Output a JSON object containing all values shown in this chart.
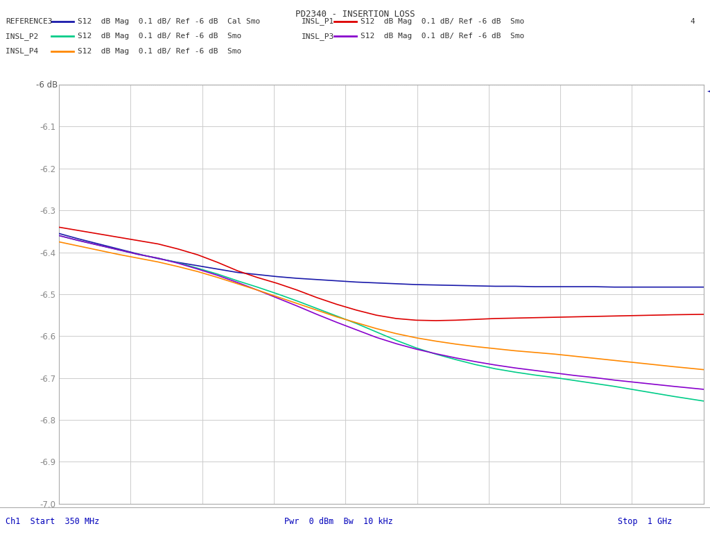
{
  "title": "PD2340 - INSERTION LOSS",
  "xstart": 350,
  "xstop": 1000,
  "ymin": -7.0,
  "ymax": -6.0,
  "ytop_label": "-6 dB",
  "grid_color": "#cccccc",
  "bg_color": "#ffffff",
  "bottom_left": "Ch1  Start  350 MHz",
  "bottom_center": "Pwr  0 dBm  Bw  10 kHz",
  "bottom_right": "Stop  1 GHz",
  "extra_label": "4",
  "traces": {
    "REFERENCE3": {
      "color": "#1a1aaa",
      "x": [
        350,
        370,
        390,
        410,
        430,
        450,
        470,
        490,
        510,
        530,
        550,
        570,
        590,
        610,
        630,
        650,
        670,
        690,
        710,
        730,
        750,
        770,
        790,
        810,
        830,
        850,
        870,
        890,
        910,
        930,
        950,
        970,
        1000
      ],
      "y": [
        -6.355,
        -6.368,
        -6.38,
        -6.392,
        -6.404,
        -6.415,
        -6.424,
        -6.432,
        -6.44,
        -6.448,
        -6.453,
        -6.458,
        -6.462,
        -6.465,
        -6.468,
        -6.471,
        -6.473,
        -6.475,
        -6.477,
        -6.478,
        -6.479,
        -6.48,
        -6.481,
        -6.481,
        -6.482,
        -6.482,
        -6.482,
        -6.482,
        -6.483,
        -6.483,
        -6.483,
        -6.483,
        -6.483
      ]
    },
    "INSL_P1": {
      "color": "#dd0000",
      "x": [
        350,
        370,
        390,
        410,
        430,
        450,
        470,
        490,
        510,
        530,
        550,
        570,
        590,
        610,
        630,
        650,
        670,
        690,
        710,
        730,
        750,
        770,
        790,
        810,
        830,
        850,
        870,
        890,
        910,
        930,
        950,
        970,
        1000
      ],
      "y": [
        -6.34,
        -6.348,
        -6.356,
        -6.364,
        -6.372,
        -6.38,
        -6.392,
        -6.406,
        -6.424,
        -6.444,
        -6.46,
        -6.474,
        -6.49,
        -6.508,
        -6.524,
        -6.538,
        -6.55,
        -6.558,
        -6.562,
        -6.563,
        -6.562,
        -6.56,
        -6.558,
        -6.557,
        -6.556,
        -6.555,
        -6.554,
        -6.553,
        -6.552,
        -6.551,
        -6.55,
        -6.549,
        -6.548
      ]
    },
    "INSL_P2": {
      "color": "#00cc88",
      "x": [
        350,
        370,
        390,
        410,
        430,
        450,
        470,
        490,
        510,
        530,
        550,
        570,
        590,
        610,
        630,
        650,
        670,
        690,
        710,
        730,
        750,
        770,
        790,
        810,
        830,
        850,
        870,
        890,
        910,
        930,
        950,
        970,
        1000
      ],
      "y": [
        -6.36,
        -6.372,
        -6.383,
        -6.394,
        -6.405,
        -6.414,
        -6.425,
        -6.438,
        -6.452,
        -6.468,
        -6.483,
        -6.499,
        -6.516,
        -6.534,
        -6.552,
        -6.57,
        -6.59,
        -6.61,
        -6.628,
        -6.643,
        -6.656,
        -6.668,
        -6.678,
        -6.686,
        -6.693,
        -6.699,
        -6.706,
        -6.713,
        -6.72,
        -6.728,
        -6.736,
        -6.744,
        -6.755
      ]
    },
    "INSL_P3": {
      "color": "#8800cc",
      "x": [
        350,
        370,
        390,
        410,
        430,
        450,
        470,
        490,
        510,
        530,
        550,
        570,
        590,
        610,
        630,
        650,
        670,
        690,
        710,
        730,
        750,
        770,
        790,
        810,
        830,
        850,
        870,
        890,
        910,
        930,
        950,
        970,
        1000
      ],
      "y": [
        -6.36,
        -6.372,
        -6.383,
        -6.394,
        -6.405,
        -6.414,
        -6.426,
        -6.44,
        -6.455,
        -6.472,
        -6.49,
        -6.509,
        -6.528,
        -6.548,
        -6.567,
        -6.585,
        -6.603,
        -6.618,
        -6.631,
        -6.642,
        -6.652,
        -6.661,
        -6.669,
        -6.676,
        -6.682,
        -6.688,
        -6.694,
        -6.699,
        -6.705,
        -6.71,
        -6.715,
        -6.72,
        -6.727
      ]
    },
    "INSL_P4": {
      "color": "#ff8800",
      "x": [
        350,
        370,
        390,
        410,
        430,
        450,
        470,
        490,
        510,
        530,
        550,
        570,
        590,
        610,
        630,
        650,
        670,
        690,
        710,
        730,
        750,
        770,
        790,
        810,
        830,
        850,
        870,
        890,
        910,
        930,
        950,
        970,
        1000
      ],
      "y": [
        -6.375,
        -6.385,
        -6.395,
        -6.405,
        -6.414,
        -6.423,
        -6.434,
        -6.446,
        -6.46,
        -6.475,
        -6.49,
        -6.506,
        -6.522,
        -6.538,
        -6.554,
        -6.568,
        -6.582,
        -6.594,
        -6.604,
        -6.612,
        -6.619,
        -6.625,
        -6.63,
        -6.635,
        -6.639,
        -6.643,
        -6.648,
        -6.653,
        -6.658,
        -6.663,
        -6.668,
        -6.673,
        -6.68
      ]
    }
  },
  "legend_rows": [
    [
      {
        "label": "REFERENCE3",
        "color": "#1a1aaa",
        "desc": "S12  dB Mag  0.1 dB/ Ref -6 dB  Cal Smo"
      },
      {
        "label": "INSL_P1",
        "color": "#dd0000",
        "desc": "S12  dB Mag  0.1 dB/ Ref -6 dB  Smo"
      },
      {
        "label": "4",
        "color": null,
        "desc": null
      }
    ],
    [
      {
        "label": "INSL_P2",
        "color": "#00cc88",
        "desc": "S12  dB Mag  0.1 dB/ Ref -6 dB  Smo"
      },
      {
        "label": "INSL_P3",
        "color": "#8800cc",
        "desc": "S12  dB Mag  0.1 dB/ Ref -6 dB  Smo"
      },
      {
        "label": null,
        "color": null,
        "desc": null
      }
    ],
    [
      {
        "label": "INSL_P4",
        "color": "#ff8800",
        "desc": "S12  dB Mag  0.1 dB/ Ref -6 dB  Smo"
      },
      {
        "label": null,
        "color": null,
        "desc": null
      },
      {
        "label": null,
        "color": null,
        "desc": null
      }
    ]
  ],
  "right_markers": [
    {
      "color": "#1a1aaa"
    },
    {
      "color": "#dd0000"
    },
    {
      "color": "#00cc88"
    },
    {
      "color": "#8800cc"
    },
    {
      "color": "#ff8800"
    }
  ]
}
